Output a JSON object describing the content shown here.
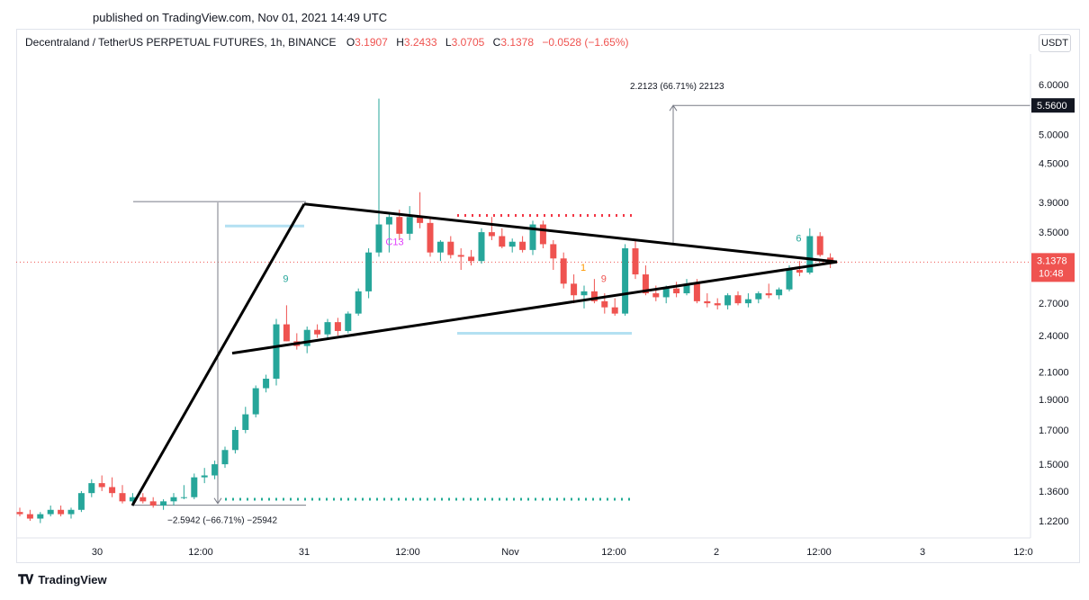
{
  "header": {
    "published": "published on TradingView.com, Nov 01, 2021 14:49 UTC"
  },
  "legend": {
    "symbol": "Decentraland / TetherUS PERPETUAL FUTURES, 1h, BINANCE",
    "open_label": "O",
    "open": "3.1907",
    "high_label": "H",
    "high": "3.2433",
    "low_label": "L",
    "low": "3.0705",
    "close_label": "C",
    "close": "3.1378",
    "change": "−0.0528 (−1.65%)"
  },
  "currency": "USDT",
  "footer": {
    "brand": "TradingView",
    "logo": "tradingview-logo-icon"
  },
  "colors": {
    "up": "#26a69a",
    "down": "#ef5350",
    "blue_line": "#b3e0f2",
    "dotted_red": "#f23645",
    "dotted_green": "#22ab94",
    "price_tag": "#ef5350",
    "target_tag": "#131722"
  },
  "chart_data": {
    "type": "candlestick",
    "scale": "log",
    "x_ticks": [
      "30",
      "12:00",
      "31",
      "12:00",
      "Nov",
      "12:00",
      "2",
      "12:00",
      "3",
      "12:0"
    ],
    "y_ticks": [
      "6.0000",
      "5.0000",
      "4.5000",
      "3.9000",
      "3.5000",
      "2.7000",
      "2.4000",
      "2.1000",
      "1.9000",
      "1.7000",
      "1.5000",
      "1.3600",
      "1.2200"
    ],
    "y_tick_values": [
      6.0,
      5.0,
      4.5,
      3.9,
      3.5,
      2.7,
      2.4,
      2.1,
      1.9,
      1.7,
      1.5,
      1.36,
      1.22
    ],
    "current_price": {
      "value": 3.1378,
      "label": "3.1378",
      "countdown": "10:48"
    },
    "target_price": {
      "value": 5.56,
      "label": "5.5600"
    },
    "measure_down": {
      "label": "−2.5942 (−66.71%) −25942"
    },
    "measure_up": {
      "label": "2.2123 (66.71%) 22123"
    },
    "annotations": [
      {
        "text": "9",
        "color": "#26a69a",
        "price": 2.92,
        "bar": 26
      },
      {
        "text": "C13",
        "color": "#e040fb",
        "price": 3.34,
        "bar": 36
      },
      {
        "text": "9",
        "color": "#ef5350",
        "price": 2.92,
        "bar": 57
      },
      {
        "text": "1",
        "color": "#ff9800",
        "price": 3.04,
        "bar": 55
      },
      {
        "text": "6",
        "color": "#26a69a",
        "price": 3.38,
        "bar": 76
      }
    ],
    "candles": [
      [
        1.26,
        1.28,
        1.24,
        1.25
      ],
      [
        1.25,
        1.27,
        1.22,
        1.23
      ],
      [
        1.23,
        1.26,
        1.21,
        1.25
      ],
      [
        1.25,
        1.29,
        1.24,
        1.27
      ],
      [
        1.27,
        1.29,
        1.24,
        1.25
      ],
      [
        1.25,
        1.28,
        1.23,
        1.27
      ],
      [
        1.27,
        1.36,
        1.26,
        1.35
      ],
      [
        1.35,
        1.42,
        1.33,
        1.4
      ],
      [
        1.4,
        1.44,
        1.36,
        1.38
      ],
      [
        1.38,
        1.43,
        1.33,
        1.35
      ],
      [
        1.35,
        1.39,
        1.3,
        1.31
      ],
      [
        1.31,
        1.35,
        1.29,
        1.33
      ],
      [
        1.33,
        1.35,
        1.3,
        1.31
      ],
      [
        1.31,
        1.33,
        1.28,
        1.29
      ],
      [
        1.29,
        1.32,
        1.27,
        1.31
      ],
      [
        1.31,
        1.35,
        1.29,
        1.33
      ],
      [
        1.33,
        1.39,
        1.32,
        1.33
      ],
      [
        1.33,
        1.45,
        1.32,
        1.43
      ],
      [
        1.43,
        1.48,
        1.4,
        1.44
      ],
      [
        1.44,
        1.52,
        1.42,
        1.5
      ],
      [
        1.5,
        1.6,
        1.48,
        1.58
      ],
      [
        1.58,
        1.72,
        1.56,
        1.7
      ],
      [
        1.7,
        1.85,
        1.68,
        1.8
      ],
      [
        1.8,
        2.0,
        1.78,
        1.98
      ],
      [
        1.98,
        2.08,
        1.95,
        2.05
      ],
      [
        2.05,
        2.55,
        2.0,
        2.5
      ],
      [
        2.5,
        2.68,
        2.35,
        2.35
      ],
      [
        2.35,
        2.42,
        2.28,
        2.31
      ],
      [
        2.31,
        2.48,
        2.25,
        2.45
      ],
      [
        2.45,
        2.5,
        2.38,
        2.41
      ],
      [
        2.41,
        2.55,
        2.38,
        2.52
      ],
      [
        2.52,
        2.56,
        2.4,
        2.44
      ],
      [
        2.44,
        2.62,
        2.42,
        2.6
      ],
      [
        2.6,
        2.85,
        2.58,
        2.82
      ],
      [
        2.82,
        3.3,
        2.75,
        3.25
      ],
      [
        3.25,
        5.7,
        3.2,
        3.6
      ],
      [
        3.6,
        3.75,
        3.25,
        3.7
      ],
      [
        3.7,
        3.8,
        3.4,
        3.48
      ],
      [
        3.48,
        3.85,
        3.4,
        3.7
      ],
      [
        3.7,
        4.05,
        3.55,
        3.62
      ],
      [
        3.62,
        3.68,
        3.2,
        3.25
      ],
      [
        3.25,
        3.4,
        3.15,
        3.38
      ],
      [
        3.38,
        3.45,
        3.18,
        3.22
      ],
      [
        3.22,
        3.3,
        3.05,
        3.2
      ],
      [
        3.2,
        3.28,
        3.1,
        3.15
      ],
      [
        3.15,
        3.55,
        3.12,
        3.5
      ],
      [
        3.5,
        3.7,
        3.4,
        3.45
      ],
      [
        3.45,
        3.55,
        3.3,
        3.32
      ],
      [
        3.32,
        3.42,
        3.25,
        3.38
      ],
      [
        3.38,
        3.45,
        3.25,
        3.28
      ],
      [
        3.28,
        3.65,
        3.22,
        3.6
      ],
      [
        3.6,
        3.65,
        3.3,
        3.35
      ],
      [
        3.35,
        3.4,
        3.05,
        3.18
      ],
      [
        3.18,
        3.25,
        2.85,
        2.9
      ],
      [
        2.9,
        3.0,
        2.7,
        2.78
      ],
      [
        2.78,
        2.88,
        2.65,
        2.82
      ],
      [
        2.82,
        2.95,
        2.7,
        2.72
      ],
      [
        2.72,
        2.8,
        2.6,
        2.66
      ],
      [
        2.66,
        2.75,
        2.58,
        2.6
      ],
      [
        2.6,
        3.35,
        2.58,
        3.3
      ],
      [
        3.3,
        3.4,
        2.95,
        3.0
      ],
      [
        3.0,
        3.1,
        2.78,
        2.8
      ],
      [
        2.8,
        2.88,
        2.72,
        2.76
      ],
      [
        2.76,
        2.88,
        2.7,
        2.85
      ],
      [
        2.85,
        2.92,
        2.76,
        2.8
      ],
      [
        2.8,
        2.95,
        2.78,
        2.9
      ],
      [
        2.9,
        2.95,
        2.7,
        2.72
      ],
      [
        2.72,
        2.8,
        2.66,
        2.7
      ],
      [
        2.7,
        2.75,
        2.64,
        2.68
      ],
      [
        2.68,
        2.8,
        2.64,
        2.78
      ],
      [
        2.78,
        2.82,
        2.68,
        2.7
      ],
      [
        2.7,
        2.8,
        2.66,
        2.74
      ],
      [
        2.74,
        2.82,
        2.7,
        2.8
      ],
      [
        2.8,
        2.9,
        2.75,
        2.78
      ],
      [
        2.78,
        2.86,
        2.74,
        2.84
      ],
      [
        2.84,
        3.1,
        2.82,
        3.05
      ],
      [
        3.05,
        3.15,
        2.98,
        3.02
      ],
      [
        3.02,
        3.55,
        3.0,
        3.45
      ],
      [
        3.45,
        3.5,
        3.2,
        3.22
      ],
      [
        3.19,
        3.24,
        3.07,
        3.14
      ]
    ]
  }
}
